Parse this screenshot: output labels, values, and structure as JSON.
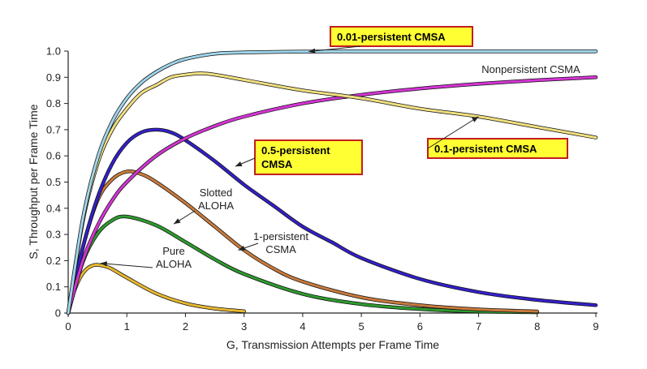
{
  "chart_data": {
    "type": "line",
    "title": "",
    "xlabel": "G, Transmission Attempts per Frame Time",
    "ylabel": "S, Throughput per Frame Time",
    "xlim": [
      0,
      9
    ],
    "ylim": [
      0,
      1.0
    ],
    "x_ticks": [
      "0",
      "1",
      "2",
      "3",
      "4",
      "5",
      "6",
      "7",
      "8",
      "9"
    ],
    "y_ticks": [
      "0",
      "0.1",
      "0.2",
      "0.3",
      "0.4",
      "0.5",
      "0.6",
      "0.7",
      "0.8",
      "0.9",
      "1.0"
    ],
    "grid": false,
    "series": [
      {
        "name": "Pure ALOHA",
        "color": "#e8b830",
        "x": [
          0,
          0.1,
          0.2,
          0.3,
          0.4,
          0.5,
          0.7,
          1.0,
          1.5,
          2.0,
          2.5,
          3.0
        ],
        "y": [
          0,
          0.082,
          0.134,
          0.165,
          0.18,
          0.184,
          0.173,
          0.135,
          0.075,
          0.037,
          0.017,
          0.007
        ]
      },
      {
        "name": "Slotted ALOHA",
        "color": "#2e9b2e",
        "x": [
          0,
          0.25,
          0.5,
          0.75,
          1.0,
          1.5,
          2.0,
          2.5,
          3.0,
          4.0,
          5.0,
          6.0,
          7.0,
          8.0
        ],
        "y": [
          0,
          0.195,
          0.303,
          0.354,
          0.368,
          0.335,
          0.271,
          0.205,
          0.149,
          0.073,
          0.034,
          0.015,
          0.006,
          0.003
        ]
      },
      {
        "name": "1-persistent CSMA",
        "color": "#c87a3c",
        "x": [
          0,
          0.25,
          0.5,
          0.75,
          1.0,
          1.25,
          1.5,
          2.0,
          2.5,
          3.0,
          3.5,
          4.0,
          5.0,
          6.0,
          7.0,
          8.0
        ],
        "y": [
          0,
          0.25,
          0.43,
          0.51,
          0.54,
          0.53,
          0.5,
          0.42,
          0.33,
          0.24,
          0.17,
          0.12,
          0.06,
          0.03,
          0.014,
          0.006
        ]
      },
      {
        "name": "0.5-persistent CMSA",
        "color": "#3320c8",
        "x": [
          0,
          0.25,
          0.5,
          0.75,
          1.0,
          1.25,
          1.5,
          1.75,
          2.0,
          2.5,
          3.0,
          3.5,
          4.0,
          4.5,
          5.0,
          6.0,
          7.0,
          8.0,
          9.0
        ],
        "y": [
          0,
          0.25,
          0.44,
          0.57,
          0.65,
          0.69,
          0.7,
          0.69,
          0.66,
          0.58,
          0.49,
          0.41,
          0.33,
          0.27,
          0.21,
          0.13,
          0.08,
          0.05,
          0.03
        ]
      },
      {
        "name": "Nonpersistent CSMA",
        "color": "#d435d4",
        "x": [
          0,
          0.25,
          0.5,
          0.75,
          1.0,
          1.5,
          2.0,
          2.5,
          3.0,
          4.0,
          5.0,
          6.0,
          7.0,
          8.0,
          9.0
        ],
        "y": [
          0,
          0.2,
          0.333,
          0.43,
          0.5,
          0.6,
          0.667,
          0.714,
          0.75,
          0.8,
          0.833,
          0.857,
          0.875,
          0.889,
          0.9
        ]
      },
      {
        "name": "0.1-persistent CMSA",
        "color": "#f0e080",
        "x": [
          0,
          0.25,
          0.5,
          0.75,
          1.0,
          1.25,
          1.5,
          1.75,
          2.0,
          2.25,
          2.5,
          3.0,
          4.0,
          5.0,
          6.0,
          7.0,
          8.0,
          9.0
        ],
        "y": [
          0,
          0.35,
          0.57,
          0.7,
          0.78,
          0.84,
          0.87,
          0.9,
          0.91,
          0.915,
          0.91,
          0.89,
          0.85,
          0.82,
          0.78,
          0.75,
          0.71,
          0.67
        ]
      },
      {
        "name": "0.01-persistent CMSA",
        "color": "#9fd4ea",
        "x": [
          0,
          0.25,
          0.5,
          0.75,
          1.0,
          1.25,
          1.5,
          1.75,
          2.0,
          2.5,
          3.0,
          4.0,
          5.0,
          6.0,
          7.0,
          8.0,
          9.0
        ],
        "y": [
          0,
          0.36,
          0.59,
          0.73,
          0.82,
          0.88,
          0.92,
          0.95,
          0.97,
          0.99,
          0.995,
          0.998,
          0.999,
          0.999,
          0.999,
          0.999,
          0.999
        ]
      }
    ],
    "annotations": [
      {
        "name": "pure-aloha",
        "lines": [
          "Pure",
          "ALOHA"
        ],
        "callout": false,
        "anchor": [
          0.55,
          0.19
        ]
      },
      {
        "name": "slotted-aloha",
        "lines": [
          "Slotted",
          "ALOHA"
        ],
        "callout": false,
        "anchor": [
          1.8,
          0.34
        ]
      },
      {
        "name": "one-persistent-csma",
        "lines": [
          "1-persistent",
          "CSMA"
        ],
        "callout": false,
        "anchor": [
          2.9,
          0.24
        ]
      },
      {
        "name": "half-persistent-csma",
        "lines": [
          "0.5-persistent",
          "CMSA"
        ],
        "callout": true,
        "anchor": [
          2.85,
          0.56
        ]
      },
      {
        "name": "nonpersistent-csma",
        "lines": [
          "Nonpersistent CSMA"
        ],
        "callout": false,
        "anchor": [
          8.1,
          0.89
        ]
      },
      {
        "name": "tenth-persistent-csma",
        "lines": [
          "0.1-persistent CMSA"
        ],
        "callout": true,
        "anchor": [
          7.0,
          0.75
        ]
      },
      {
        "name": "hundredth-persistent-csma",
        "lines": [
          "0.01-persistent CMSA"
        ],
        "callout": true,
        "anchor": [
          4.1,
          0.998
        ]
      }
    ]
  }
}
